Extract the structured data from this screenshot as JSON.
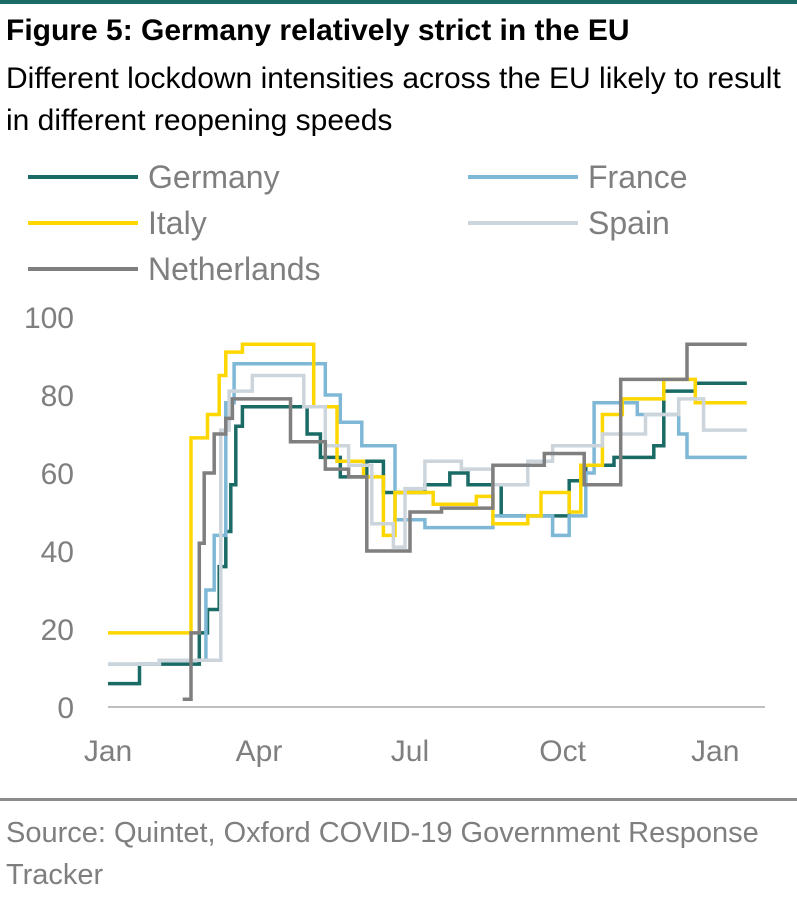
{
  "title": "Figure 5: Germany relatively strict in the EU",
  "subtitle": "Different lockdown intensities across the EU likely to result in different reopening speeds",
  "source": "Source: Quintet, Oxford COVID-19 Government Response Tracker",
  "chart_data": {
    "type": "line",
    "xlabel": "",
    "ylabel": "",
    "ylim": [
      0,
      100
    ],
    "xlim": [
      "2020-01-01",
      "2021-01-31"
    ],
    "yticks": [
      0,
      20,
      40,
      60,
      80,
      100
    ],
    "xticks": [
      {
        "label": "Jan",
        "date": "2020-01-01"
      },
      {
        "label": "Apr",
        "date": "2020-04-01"
      },
      {
        "label": "Jul",
        "date": "2020-07-01"
      },
      {
        "label": "Oct",
        "date": "2020-10-01"
      },
      {
        "label": "Jan",
        "date": "2021-01-01"
      }
    ],
    "grid": false,
    "legend": "top",
    "series": [
      {
        "name": "Germany",
        "color": "#1a6b66",
        "points": [
          [
            "2020-01-01",
            6
          ],
          [
            "2020-01-20",
            6
          ],
          [
            "2020-01-20",
            11
          ],
          [
            "2020-02-25",
            11
          ],
          [
            "2020-02-25",
            19
          ],
          [
            "2020-03-01",
            19
          ],
          [
            "2020-03-01",
            25
          ],
          [
            "2020-03-08",
            25
          ],
          [
            "2020-03-08",
            36
          ],
          [
            "2020-03-12",
            36
          ],
          [
            "2020-03-12",
            45
          ],
          [
            "2020-03-15",
            45
          ],
          [
            "2020-03-15",
            57
          ],
          [
            "2020-03-18",
            57
          ],
          [
            "2020-03-18",
            72
          ],
          [
            "2020-03-22",
            72
          ],
          [
            "2020-03-22",
            77
          ],
          [
            "2020-04-30",
            77
          ],
          [
            "2020-04-30",
            70
          ],
          [
            "2020-05-08",
            70
          ],
          [
            "2020-05-08",
            64
          ],
          [
            "2020-05-20",
            64
          ],
          [
            "2020-05-20",
            59
          ],
          [
            "2020-06-05",
            59
          ],
          [
            "2020-06-05",
            63
          ],
          [
            "2020-06-15",
            63
          ],
          [
            "2020-06-15",
            55
          ],
          [
            "2020-07-10",
            55
          ],
          [
            "2020-07-10",
            57
          ],
          [
            "2020-07-25",
            57
          ],
          [
            "2020-07-25",
            60
          ],
          [
            "2020-08-05",
            60
          ],
          [
            "2020-08-05",
            57
          ],
          [
            "2020-08-25",
            57
          ],
          [
            "2020-08-25",
            49
          ],
          [
            "2020-10-05",
            49
          ],
          [
            "2020-10-05",
            58
          ],
          [
            "2020-10-15",
            58
          ],
          [
            "2020-10-15",
            62
          ],
          [
            "2020-11-01",
            62
          ],
          [
            "2020-11-01",
            64
          ],
          [
            "2020-11-25",
            64
          ],
          [
            "2020-11-25",
            67
          ],
          [
            "2020-12-01",
            67
          ],
          [
            "2020-12-01",
            81
          ],
          [
            "2020-12-20",
            81
          ],
          [
            "2020-12-20",
            83
          ],
          [
            "2021-01-20",
            83
          ]
        ]
      },
      {
        "name": "France",
        "color": "#7fb8d6",
        "points": [
          [
            "2020-01-01",
            11
          ],
          [
            "2020-02-01",
            11
          ],
          [
            "2020-02-01",
            12
          ],
          [
            "2020-02-29",
            12
          ],
          [
            "2020-02-29",
            30
          ],
          [
            "2020-03-05",
            30
          ],
          [
            "2020-03-05",
            44
          ],
          [
            "2020-03-12",
            44
          ],
          [
            "2020-03-12",
            78
          ],
          [
            "2020-03-17",
            78
          ],
          [
            "2020-03-17",
            88
          ],
          [
            "2020-05-11",
            88
          ],
          [
            "2020-05-11",
            80
          ],
          [
            "2020-05-20",
            80
          ],
          [
            "2020-05-20",
            73
          ],
          [
            "2020-06-02",
            73
          ],
          [
            "2020-06-02",
            67
          ],
          [
            "2020-06-22",
            67
          ],
          [
            "2020-06-22",
            48
          ],
          [
            "2020-07-10",
            48
          ],
          [
            "2020-07-10",
            46
          ],
          [
            "2020-08-20",
            46
          ],
          [
            "2020-08-20",
            49
          ],
          [
            "2020-09-25",
            49
          ],
          [
            "2020-09-25",
            44
          ],
          [
            "2020-10-05",
            44
          ],
          [
            "2020-10-05",
            49
          ],
          [
            "2020-10-15",
            49
          ],
          [
            "2020-10-15",
            60
          ],
          [
            "2020-10-20",
            60
          ],
          [
            "2020-10-20",
            78
          ],
          [
            "2020-11-15",
            78
          ],
          [
            "2020-11-15",
            75
          ],
          [
            "2020-12-10",
            75
          ],
          [
            "2020-12-10",
            70
          ],
          [
            "2020-12-15",
            70
          ],
          [
            "2020-12-15",
            64
          ],
          [
            "2021-01-20",
            64
          ]
        ]
      },
      {
        "name": "Italy",
        "color": "#ffd700",
        "points": [
          [
            "2020-01-01",
            19
          ],
          [
            "2020-02-20",
            19
          ],
          [
            "2020-02-20",
            69
          ],
          [
            "2020-03-01",
            69
          ],
          [
            "2020-03-01",
            75
          ],
          [
            "2020-03-08",
            75
          ],
          [
            "2020-03-08",
            85
          ],
          [
            "2020-03-12",
            85
          ],
          [
            "2020-03-12",
            91
          ],
          [
            "2020-03-22",
            91
          ],
          [
            "2020-03-22",
            93
          ],
          [
            "2020-05-04",
            93
          ],
          [
            "2020-05-04",
            77
          ],
          [
            "2020-05-18",
            77
          ],
          [
            "2020-05-18",
            63
          ],
          [
            "2020-06-03",
            63
          ],
          [
            "2020-06-03",
            59
          ],
          [
            "2020-06-15",
            59
          ],
          [
            "2020-06-15",
            44
          ],
          [
            "2020-06-22",
            44
          ],
          [
            "2020-06-22",
            55
          ],
          [
            "2020-07-15",
            55
          ],
          [
            "2020-07-15",
            52
          ],
          [
            "2020-08-10",
            52
          ],
          [
            "2020-08-10",
            54
          ],
          [
            "2020-08-20",
            54
          ],
          [
            "2020-08-20",
            47
          ],
          [
            "2020-09-10",
            47
          ],
          [
            "2020-09-10",
            49
          ],
          [
            "2020-09-18",
            49
          ],
          [
            "2020-09-18",
            55
          ],
          [
            "2020-10-05",
            55
          ],
          [
            "2020-10-05",
            50
          ],
          [
            "2020-10-12",
            50
          ],
          [
            "2020-10-12",
            62
          ],
          [
            "2020-10-25",
            62
          ],
          [
            "2020-10-25",
            75
          ],
          [
            "2020-11-06",
            75
          ],
          [
            "2020-11-06",
            79
          ],
          [
            "2020-12-01",
            79
          ],
          [
            "2020-12-01",
            84
          ],
          [
            "2020-12-20",
            84
          ],
          [
            "2020-12-20",
            78
          ],
          [
            "2021-01-20",
            78
          ]
        ]
      },
      {
        "name": "Spain",
        "color": "#cdd5dc",
        "points": [
          [
            "2020-01-01",
            11
          ],
          [
            "2020-02-01",
            11
          ],
          [
            "2020-02-01",
            12
          ],
          [
            "2020-03-09",
            12
          ],
          [
            "2020-03-09",
            71
          ],
          [
            "2020-03-14",
            71
          ],
          [
            "2020-03-14",
            81
          ],
          [
            "2020-03-28",
            81
          ],
          [
            "2020-03-28",
            85
          ],
          [
            "2020-04-28",
            85
          ],
          [
            "2020-04-28",
            77
          ],
          [
            "2020-05-11",
            77
          ],
          [
            "2020-05-11",
            67
          ],
          [
            "2020-05-25",
            67
          ],
          [
            "2020-05-25",
            62
          ],
          [
            "2020-06-08",
            62
          ],
          [
            "2020-06-08",
            47
          ],
          [
            "2020-06-21",
            47
          ],
          [
            "2020-06-21",
            41
          ],
          [
            "2020-06-28",
            41
          ],
          [
            "2020-06-28",
            56
          ],
          [
            "2020-07-10",
            56
          ],
          [
            "2020-07-10",
            63
          ],
          [
            "2020-08-01",
            63
          ],
          [
            "2020-08-01",
            61
          ],
          [
            "2020-08-20",
            61
          ],
          [
            "2020-08-20",
            57
          ],
          [
            "2020-09-10",
            57
          ],
          [
            "2020-09-10",
            63
          ],
          [
            "2020-09-25",
            63
          ],
          [
            "2020-09-25",
            67
          ],
          [
            "2020-10-25",
            67
          ],
          [
            "2020-10-25",
            70
          ],
          [
            "2020-11-20",
            70
          ],
          [
            "2020-11-20",
            75
          ],
          [
            "2020-12-10",
            75
          ],
          [
            "2020-12-10",
            79
          ],
          [
            "2020-12-25",
            79
          ],
          [
            "2020-12-25",
            71
          ],
          [
            "2021-01-20",
            71
          ]
        ]
      },
      {
        "name": "Netherlands",
        "color": "#7f7f7f",
        "points": [
          [
            "2020-02-15",
            2
          ],
          [
            "2020-02-20",
            2
          ],
          [
            "2020-02-20",
            19
          ],
          [
            "2020-02-25",
            19
          ],
          [
            "2020-02-25",
            42
          ],
          [
            "2020-02-28",
            42
          ],
          [
            "2020-02-28",
            60
          ],
          [
            "2020-03-05",
            60
          ],
          [
            "2020-03-05",
            70
          ],
          [
            "2020-03-12",
            70
          ],
          [
            "2020-03-12",
            74
          ],
          [
            "2020-03-16",
            74
          ],
          [
            "2020-03-16",
            79
          ],
          [
            "2020-04-20",
            79
          ],
          [
            "2020-04-20",
            68
          ],
          [
            "2020-05-11",
            68
          ],
          [
            "2020-05-11",
            61
          ],
          [
            "2020-05-25",
            61
          ],
          [
            "2020-05-25",
            59
          ],
          [
            "2020-06-05",
            59
          ],
          [
            "2020-06-05",
            40
          ],
          [
            "2020-07-01",
            40
          ],
          [
            "2020-07-01",
            50
          ],
          [
            "2020-07-20",
            50
          ],
          [
            "2020-07-20",
            51
          ],
          [
            "2020-08-20",
            51
          ],
          [
            "2020-08-20",
            62
          ],
          [
            "2020-09-20",
            62
          ],
          [
            "2020-09-20",
            65
          ],
          [
            "2020-10-14",
            65
          ],
          [
            "2020-10-14",
            57
          ],
          [
            "2020-11-05",
            57
          ],
          [
            "2020-11-05",
            84
          ],
          [
            "2020-12-15",
            84
          ],
          [
            "2020-12-15",
            93
          ],
          [
            "2021-01-20",
            93
          ]
        ]
      }
    ]
  }
}
